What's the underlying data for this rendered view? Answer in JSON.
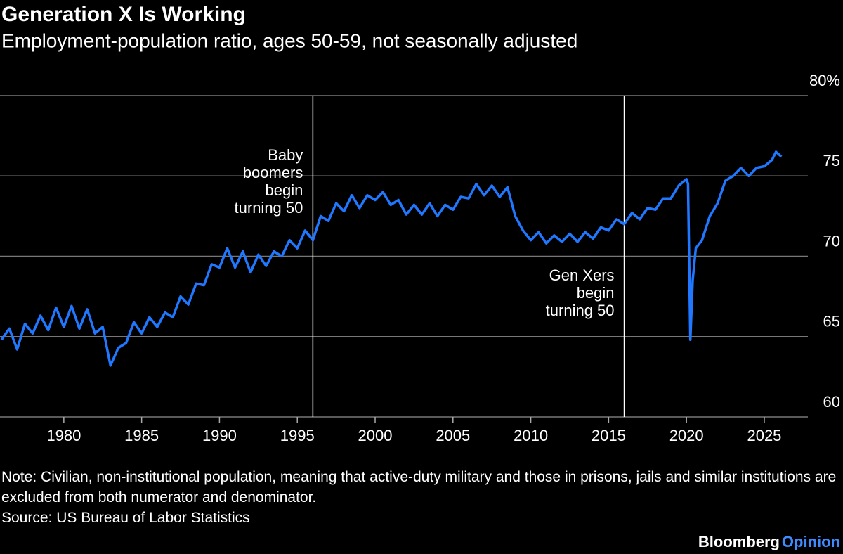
{
  "chart_data": {
    "type": "line",
    "title": "Generation X Is Working",
    "subtitle": "Employment-population ratio, ages 50-59, not seasonally adjusted",
    "note": "Note: Civilian, non-institutional population, meaning that active-duty military and those in prisons, jails and similar institutions are excluded from both numerator and denominator.",
    "source": "Source: US Bureau of Labor Statistics",
    "brand": [
      "Bloomberg",
      "Opinion"
    ],
    "annotations": [
      {
        "x": 1996,
        "lines": [
          "Baby",
          "boomers",
          "begin",
          "turning 50"
        ]
      },
      {
        "x": 2016,
        "lines": [
          "Gen Xers",
          "begin",
          "turning 50"
        ]
      }
    ],
    "xlim": [
      1975.9,
      2027.8
    ],
    "xticks": [
      1980,
      1985,
      1990,
      1995,
      2000,
      2005,
      2010,
      2015,
      2020,
      2025
    ],
    "ylim": [
      60,
      80
    ],
    "yticks": [
      60,
      65,
      70,
      75,
      {
        "value": 80,
        "label": "80%"
      }
    ],
    "grid": true,
    "series": [
      {
        "name": "Employment-population ratio, ages 50-59",
        "color": "#1f78ff",
        "x": [
          1976,
          1976.5,
          1977,
          1977.5,
          1978,
          1978.5,
          1979,
          1979.5,
          1980,
          1980.5,
          1981,
          1981.5,
          1982,
          1982.5,
          1983,
          1983.5,
          1984,
          1984.5,
          1985,
          1985.5,
          1986,
          1986.5,
          1987,
          1987.5,
          1988,
          1988.5,
          1989,
          1989.5,
          1990,
          1990.5,
          1991,
          1991.5,
          1992,
          1992.5,
          1993,
          1993.5,
          1994,
          1994.5,
          1995,
          1995.5,
          1996,
          1996.5,
          1997,
          1997.5,
          1998,
          1998.5,
          1999,
          1999.5,
          2000,
          2000.5,
          2001,
          2001.5,
          2002,
          2002.5,
          2003,
          2003.5,
          2004,
          2004.5,
          2005,
          2005.5,
          2006,
          2006.5,
          2007,
          2007.5,
          2008,
          2008.5,
          2009,
          2009.5,
          2010,
          2010.5,
          2011,
          2011.5,
          2012,
          2012.5,
          2013,
          2013.5,
          2014,
          2014.5,
          2015,
          2015.5,
          2016,
          2016.5,
          2017,
          2017.5,
          2018,
          2018.5,
          2019,
          2019.5,
          2020,
          2020.1,
          2020.25,
          2020.4,
          2020.6,
          2021,
          2021.5,
          2022,
          2022.5,
          2023,
          2023.5,
          2024,
          2024.5,
          2025,
          2025.5,
          2025.75,
          2026.1
        ],
        "values": [
          64.8,
          65.5,
          64.2,
          65.8,
          65.2,
          66.3,
          65.4,
          66.8,
          65.6,
          66.9,
          65.5,
          66.7,
          65.2,
          65.6,
          63.2,
          64.3,
          64.6,
          65.9,
          65.2,
          66.2,
          65.6,
          66.5,
          66.2,
          67.5,
          67.0,
          68.3,
          68.2,
          69.5,
          69.3,
          70.5,
          69.3,
          70.3,
          69.0,
          70.1,
          69.4,
          70.3,
          70.0,
          71.0,
          70.5,
          71.6,
          71.0,
          72.5,
          72.2,
          73.3,
          72.8,
          73.8,
          73.0,
          73.8,
          73.5,
          74.0,
          73.2,
          73.5,
          72.6,
          73.2,
          72.6,
          73.3,
          72.5,
          73.2,
          72.9,
          73.7,
          73.6,
          74.5,
          73.8,
          74.4,
          73.7,
          74.3,
          72.5,
          71.6,
          71.0,
          71.5,
          70.8,
          71.3,
          70.9,
          71.4,
          70.9,
          71.5,
          71.1,
          71.8,
          71.6,
          72.3,
          72.0,
          72.7,
          72.3,
          73.0,
          72.9,
          73.6,
          73.6,
          74.4,
          74.8,
          74.5,
          64.8,
          68.5,
          70.5,
          71.0,
          72.5,
          73.3,
          74.7,
          75.0,
          75.5,
          75.0,
          75.5,
          75.6,
          76.0,
          76.5,
          76.2
        ]
      }
    ]
  }
}
